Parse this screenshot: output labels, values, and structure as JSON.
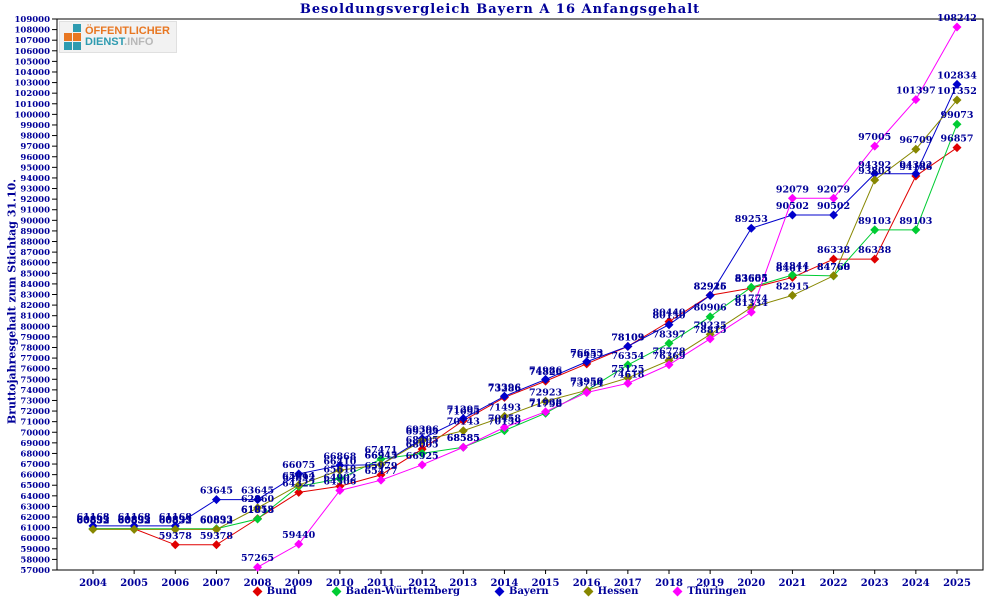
{
  "title": "Besoldungsvergleich Bayern A 16 Anfangsgehalt",
  "logo": {
    "line1": "ÖFFENTLICHER",
    "line2_a": "DIENST",
    "line2_b": ".INFO"
  },
  "y_axis_title": "Bruttojahresgehalt zum Stichtag 31.10.",
  "colors": {
    "text": "#000099",
    "axis": "#000000"
  },
  "chart_data": {
    "type": "line",
    "title": "Besoldungsvergleich Bayern A 16 Anfangsgehalt",
    "xlabel": "",
    "ylabel": "Bruttojahresgehalt zum Stichtag 31.10.",
    "ylim": [
      57000,
      109000
    ],
    "ytick_step": 1000,
    "grid": false,
    "legend_position": "bottom",
    "point_labels": true,
    "categories": [
      2004,
      2005,
      2006,
      2007,
      2008,
      2009,
      2010,
      2011,
      2012,
      2013,
      2014,
      2015,
      2016,
      2017,
      2018,
      2019,
      2020,
      2021,
      2022,
      2023,
      2024,
      2025
    ],
    "series": [
      {
        "name": "Bund",
        "color": "#e00000",
        "values": [
          60892,
          60892,
          59378,
          59378,
          61853,
          64322,
          64902,
          65979,
          68405,
          71095,
          73286,
          74826,
          76457,
          78103,
          80440,
          82926,
          83605,
          84611,
          86338,
          86338,
          94186,
          96857
        ]
      },
      {
        "name": "Baden-Württemberg",
        "color": "#00cc33",
        "values": [
          60893,
          60893,
          60893,
          60893,
          61818,
          64892,
          65618,
          67471,
          68005,
          68585,
          70159,
          71798,
          73950,
          76354,
          78397,
          80906,
          83685,
          84844,
          84760,
          89103,
          89103,
          99073
        ]
      },
      {
        "name": "Bayern",
        "color": "#0000cc",
        "values": [
          61168,
          61168,
          61168,
          63645,
          63645,
          66075,
          66868,
          66945,
          69396,
          71295,
          73396,
          74986,
          76653,
          78109,
          80150,
          82915,
          89253,
          90502,
          90502,
          94392,
          94392,
          102834
        ]
      },
      {
        "name": "Hessen",
        "color": "#878700",
        "values": [
          60832,
          60832,
          60832,
          60832,
          62860,
          65014,
          66410,
          66943,
          69205,
          70143,
          71493,
          72923,
          73958,
          75125,
          76778,
          79235,
          81774,
          82915,
          84768,
          93803,
          96709,
          101352
        ]
      },
      {
        "name": "Thüringen",
        "color": "#ff00ff",
        "values": [
          null,
          null,
          null,
          null,
          57265,
          59440,
          64506,
          65477,
          66925,
          68585,
          70458,
          71938,
          73754,
          74618,
          76369,
          78815,
          81334,
          92079,
          92079,
          97005,
          101397,
          108242
        ]
      }
    ]
  }
}
